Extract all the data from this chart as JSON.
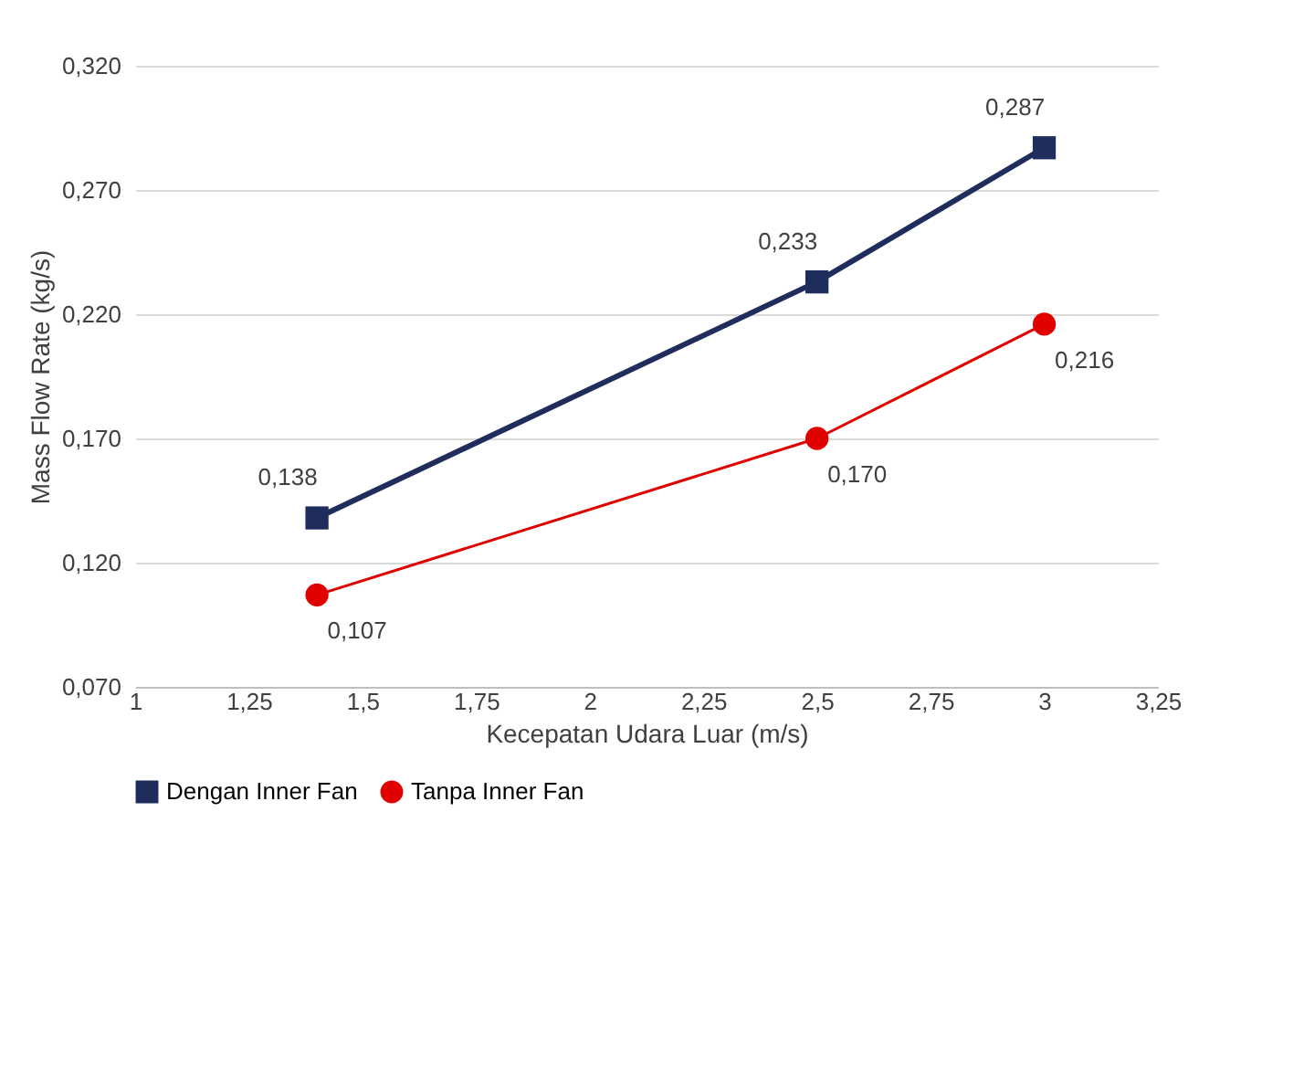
{
  "chart_data": {
    "type": "line",
    "xlabel": "Kecepatan Udara Luar (m/s)",
    "ylabel": "Mass Flow Rate (kg/s)",
    "x": [
      1.4,
      2.5,
      3.0
    ],
    "series": [
      {
        "name": "Dengan Inner Fan",
        "color": "#1f2d5c",
        "marker": "square",
        "values": [
          0.138,
          0.233,
          0.287
        ],
        "value_labels": [
          "0,138",
          "0,233",
          "0,287"
        ]
      },
      {
        "name": "Tanpa Inner Fan",
        "color": "#e00000",
        "marker": "circle",
        "values": [
          0.107,
          0.17,
          0.216
        ],
        "value_labels": [
          "0,107",
          "0,170",
          "0,216"
        ]
      }
    ],
    "xlim": [
      1,
      3.25
    ],
    "xticks": [
      1,
      {
        "value": 1.25,
        "label": "1,25"
      },
      {
        "value": 1.5,
        "label": "1,5"
      },
      {
        "value": 1.75,
        "label": "1,75"
      },
      2,
      {
        "value": 2.25,
        "label": "2,25"
      },
      {
        "value": 2.5,
        "label": "2,5"
      },
      {
        "value": 2.75,
        "label": "2,75"
      },
      3,
      {
        "value": 3.25,
        "label": "3,25"
      }
    ],
    "ylim": [
      0.07,
      0.32
    ],
    "yticks": [
      {
        "value": 0.07,
        "label": "0,070"
      },
      {
        "value": 0.12,
        "label": "0,120"
      },
      {
        "value": 0.17,
        "label": "0,170"
      },
      {
        "value": 0.22,
        "label": "0,220"
      },
      {
        "value": 0.27,
        "label": "0,270"
      },
      {
        "value": 0.32,
        "label": "0,320"
      }
    ],
    "grid": "y",
    "legend": "bottom",
    "line_style": "solid"
  }
}
